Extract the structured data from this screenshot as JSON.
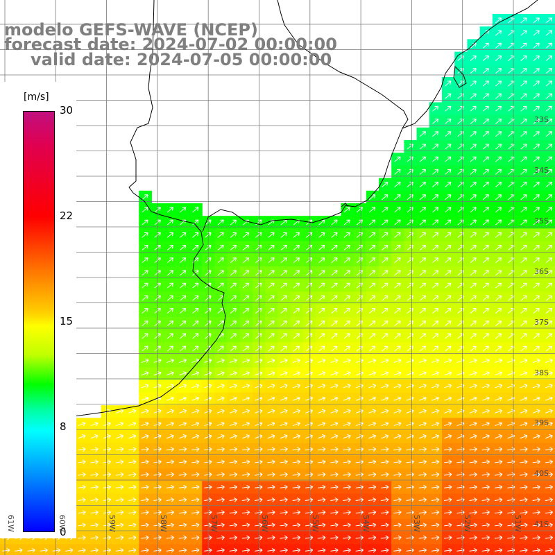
{
  "header": {
    "model": "modelo GEFS-WAVE (NCEP)",
    "forecast": "forecast date: 2024-07-02 00:00:00",
    "valid": "valid date: 2024-07-05 00:00:00"
  },
  "legend": {
    "unit": "[m/s]",
    "ticks": [
      "30",
      "22",
      "15",
      "8",
      "0"
    ],
    "colors": [
      "#c0107f",
      "#e00050",
      "#ff0000",
      "#ff8000",
      "#ffd000",
      "#ffff00",
      "#c0ff00",
      "#00ff00",
      "#00ffa0",
      "#00ffff",
      "#00c0ff",
      "#0080ff",
      "#0040ff",
      "#0000ff"
    ]
  },
  "lat_labels": [
    "33S",
    "34S",
    "35S",
    "36S",
    "37S",
    "38S",
    "39S",
    "40S",
    "41S"
  ],
  "lon_labels": [
    "61W",
    "60W",
    "59W",
    "58W",
    "57W",
    "56W",
    "55W",
    "54W",
    "53W",
    "52W",
    "51W"
  ],
  "colors": {
    "land": "#ffffff",
    "grid": "#7a7a7a",
    "coast": "#000000",
    "arrow": "#ffffff",
    "label": "#7f7f7f"
  }
}
